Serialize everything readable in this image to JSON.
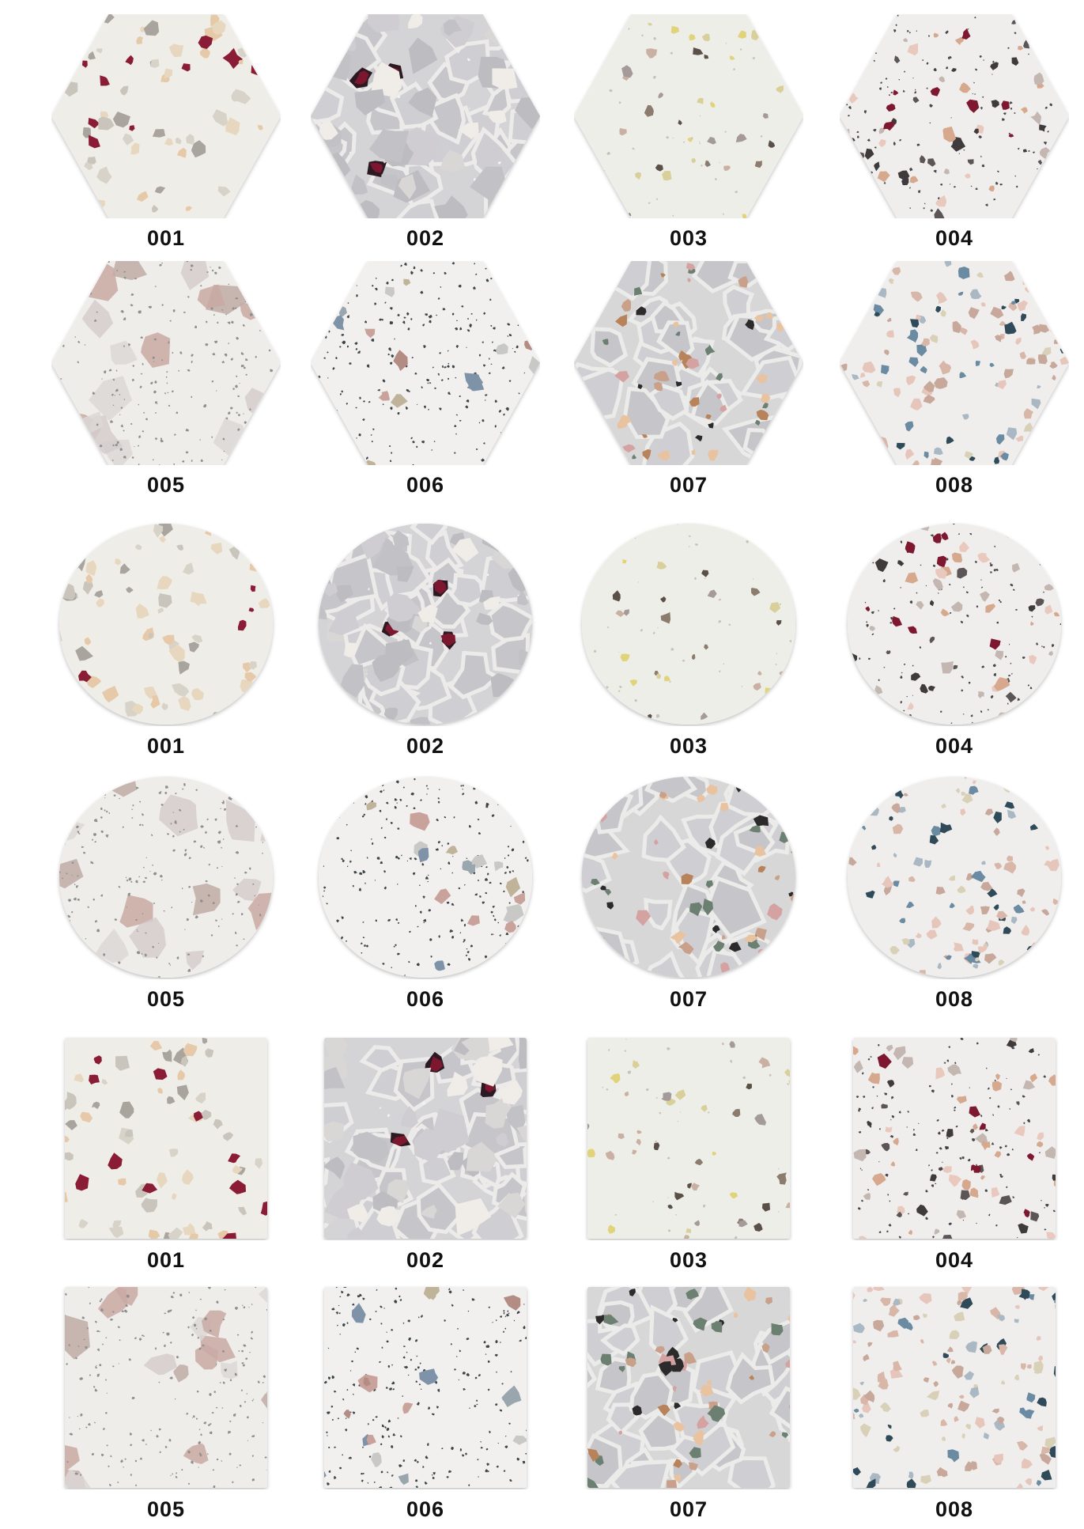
{
  "gallery": {
    "rows": [
      {
        "shape": "hexagon",
        "tiles": [
          {
            "code": "001",
            "pattern": "001"
          },
          {
            "code": "002",
            "pattern": "002"
          },
          {
            "code": "003",
            "pattern": "003"
          },
          {
            "code": "004",
            "pattern": "004"
          }
        ]
      },
      {
        "shape": "hexagon",
        "tiles": [
          {
            "code": "005",
            "pattern": "005"
          },
          {
            "code": "006",
            "pattern": "006"
          },
          {
            "code": "007",
            "pattern": "007"
          },
          {
            "code": "008",
            "pattern": "008"
          }
        ]
      },
      {
        "shape": "circle",
        "tiles": [
          {
            "code": "001",
            "pattern": "001"
          },
          {
            "code": "002",
            "pattern": "002"
          },
          {
            "code": "003",
            "pattern": "003"
          },
          {
            "code": "004",
            "pattern": "004"
          }
        ]
      },
      {
        "shape": "circle",
        "tiles": [
          {
            "code": "005",
            "pattern": "005"
          },
          {
            "code": "006",
            "pattern": "006"
          },
          {
            "code": "007",
            "pattern": "007"
          },
          {
            "code": "008",
            "pattern": "008"
          }
        ]
      },
      {
        "shape": "square",
        "tiles": [
          {
            "code": "001",
            "pattern": "001"
          },
          {
            "code": "002",
            "pattern": "002"
          },
          {
            "code": "003",
            "pattern": "003"
          },
          {
            "code": "004",
            "pattern": "004"
          }
        ]
      },
      {
        "shape": "square",
        "tiles": [
          {
            "code": "005",
            "pattern": "005"
          },
          {
            "code": "006",
            "pattern": "006"
          },
          {
            "code": "007",
            "pattern": "007"
          },
          {
            "code": "008",
            "pattern": "008"
          }
        ]
      }
    ]
  },
  "patterns": {
    "001": {
      "base": "#efede8",
      "colors": [
        "#8b1c35",
        "#e6c9a8",
        "#d8d3c8",
        "#c9c4bc",
        "#a9a49d",
        "#e7d7bf"
      ],
      "chips": 70,
      "size": [
        4,
        12
      ],
      "specks": 0,
      "specks_color": "#555555",
      "mosaic": false,
      "grout": "",
      "big": 0
    },
    "002": {
      "base": "#d4d3d6",
      "colors": [
        "#c2c1c6",
        "#cfcdd1",
        "#bdbcc1",
        "#d9d6d6",
        "#f0ece8"
      ],
      "chips": 40,
      "size": [
        10,
        28
      ],
      "specks": 10,
      "specks_color": "#f5f5f5",
      "mosaic": true,
      "grout": "#ecebea",
      "big": 3,
      "accent": "#7d1730"
    },
    "003": {
      "base": "#eeeee8",
      "colors": [
        "#e0d37a",
        "#a49a9a",
        "#8c7c6e",
        "#c9b0a3",
        "#d9cf9a",
        "#5a5048"
      ],
      "chips": 40,
      "size": [
        3,
        8
      ],
      "specks": 40,
      "specks_color": "#c9c0b7",
      "mosaic": false,
      "grout": "",
      "big": 0
    },
    "004": {
      "base": "#efeeec",
      "colors": [
        "#7e1831",
        "#5b5556",
        "#d6a98f",
        "#c4b6b1",
        "#3f3b3c",
        "#e9c9bd"
      ],
      "chips": 80,
      "size": [
        3,
        10
      ],
      "specks": 140,
      "specks_color": "#4a4647",
      "mosaic": false,
      "grout": "",
      "big": 0
    },
    "005": {
      "base": "#eeedea",
      "colors": [
        "#c9a9a3",
        "#d5cdcc",
        "#bfaaa6",
        "#dcd7d6"
      ],
      "chips": 16,
      "size": [
        14,
        30
      ],
      "specks": 220,
      "specks_color": "#8f8f8d",
      "mosaic": false,
      "grout": "",
      "big": 0
    },
    "006": {
      "base": "#f1f0ee",
      "colors": [
        "#c9a29c",
        "#9aa6ad",
        "#bfb39a",
        "#7e93a8",
        "#b38c84",
        "#c8c8c6"
      ],
      "chips": 18,
      "size": [
        5,
        14
      ],
      "specks": 260,
      "specks_color": "#3c4548",
      "mosaic": false,
      "grout": "",
      "big": 0
    },
    "007": {
      "base": "#d7d7d8",
      "colors": [
        "#b8835a",
        "#6b8071",
        "#c9a08a",
        "#d4a2a0",
        "#2c2a2a",
        "#e9c3a0"
      ],
      "chips": 55,
      "size": [
        3,
        11
      ],
      "specks": 0,
      "specks_color": "#333333",
      "mosaic": true,
      "grout": "#ebebea",
      "big": 0
    },
    "008": {
      "base": "#efeeec",
      "colors": [
        "#6a8ba1",
        "#2f4a58",
        "#d8b6a8",
        "#e6c5bb",
        "#a9b8c3",
        "#c7a89a",
        "#d9d0b8"
      ],
      "chips": 130,
      "size": [
        3,
        9
      ],
      "specks": 0,
      "specks_color": "#333333",
      "mosaic": false,
      "grout": "",
      "big": 0
    }
  }
}
